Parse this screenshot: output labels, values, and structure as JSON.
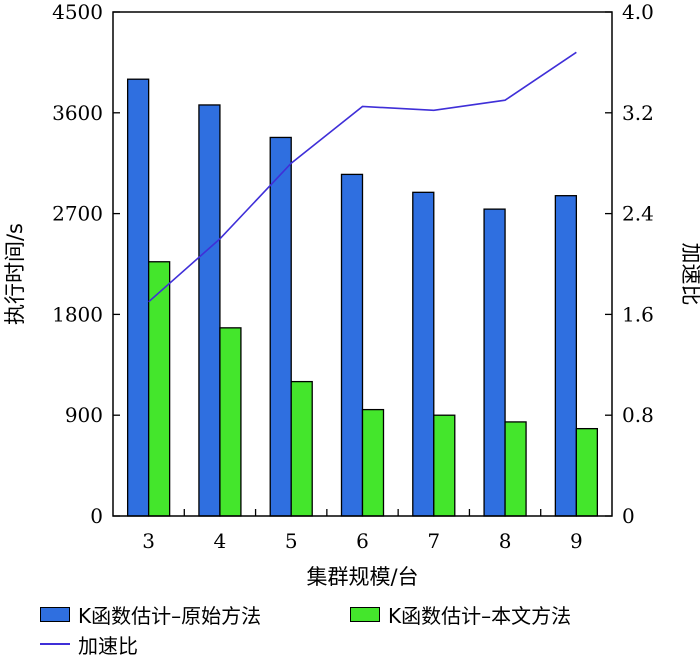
{
  "chart_data": {
    "type": "bar",
    "categories": [
      "3",
      "4",
      "5",
      "6",
      "7",
      "8",
      "9"
    ],
    "xlabel": "集群规模/台",
    "ylabel": "执行时间/s",
    "y2label": "加速比",
    "ylim": [
      0,
      4500
    ],
    "y2lim": [
      0,
      4.0
    ],
    "yticks": [
      "0",
      "900",
      "1800",
      "2700",
      "3600",
      "4500"
    ],
    "y2ticks": [
      "0",
      "0.8",
      "1.6",
      "2.4",
      "3.2",
      "4.0"
    ],
    "series": [
      {
        "name": "K函数估计–原始方法",
        "kind": "bar",
        "color": "#2f6fe0",
        "values": [
          3900,
          3670,
          3380,
          3050,
          2890,
          2740,
          2860
        ]
      },
      {
        "name": "K函数估计–本文方法",
        "kind": "bar",
        "color": "#44e62c",
        "values": [
          2270,
          1680,
          1200,
          950,
          900,
          840,
          780
        ]
      },
      {
        "name": "加速比",
        "kind": "line",
        "axis": "right",
        "color": "#3f2fd8",
        "values": [
          1.7,
          2.2,
          2.8,
          3.25,
          3.22,
          3.3,
          3.68
        ]
      }
    ],
    "legend": "bottom",
    "grid": false
  }
}
